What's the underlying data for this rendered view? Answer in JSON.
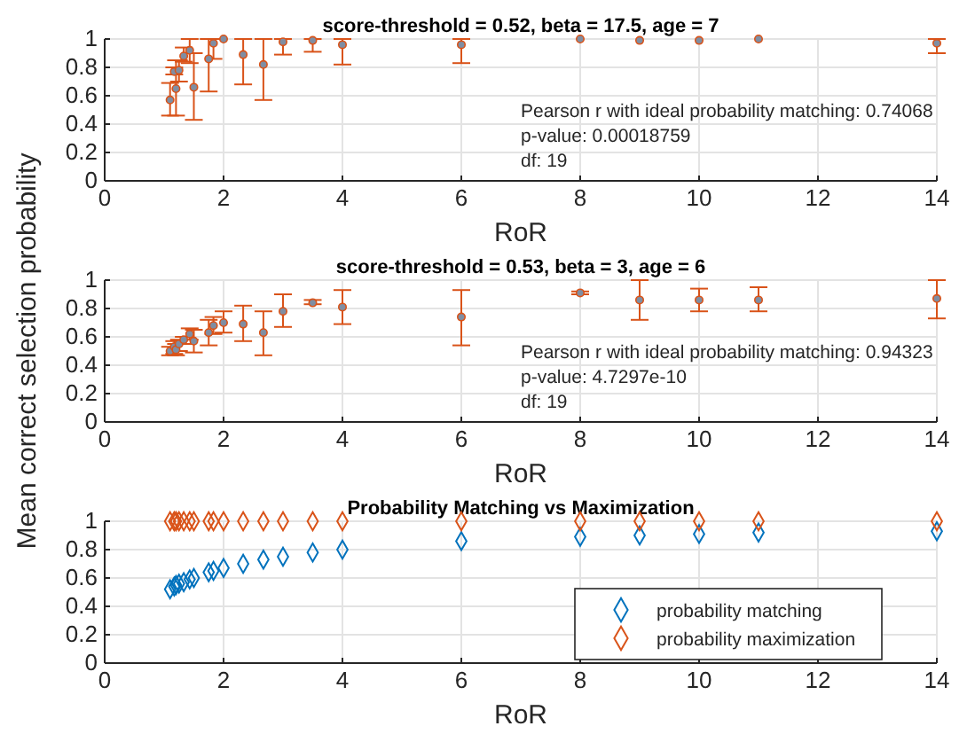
{
  "chart_data": [
    {
      "type": "scatter",
      "title": "score-threshold = 0.52, beta = 17.5, age = 7",
      "xlabel": "RoR",
      "x": [
        1.1,
        1.17,
        1.2,
        1.25,
        1.33,
        1.43,
        1.5,
        1.75,
        1.83,
        2,
        2.33,
        2.67,
        3,
        3.5,
        4,
        6,
        8,
        9,
        10,
        11,
        14
      ],
      "xlim": [
        0,
        14
      ],
      "xticks": [
        0,
        2,
        4,
        6,
        8,
        10,
        12,
        14
      ],
      "ylim": [
        0,
        1
      ],
      "yticks": [
        0,
        0.2,
        0.4,
        0.6,
        0.8,
        1
      ],
      "grid": true,
      "marker": "circle",
      "legend": false,
      "series": [
        {
          "color": "#d95319",
          "values": [
            0.57,
            0.77,
            0.65,
            0.78,
            0.88,
            0.92,
            0.66,
            0.86,
            0.97,
            1.0,
            0.89,
            0.82,
            0.98,
            0.99,
            0.96,
            0.96,
            1.0,
            0.99,
            0.99,
            1.0,
            0.97
          ],
          "errors": [
            [
              0.46,
              0.69
            ],
            [
              0.75,
              0.8
            ],
            [
              0.46,
              0.85
            ],
            [
              0.7,
              0.85
            ],
            [
              0.84,
              0.94
            ],
            [
              0.83,
              1.0
            ],
            [
              0.43,
              0.9
            ],
            [
              0.63,
              1.0
            ],
            [
              0.86,
              1.0
            ],
            null,
            [
              0.68,
              1.0
            ],
            [
              0.57,
              1.0
            ],
            [
              0.89,
              1.0
            ],
            [
              0.91,
              1.0
            ],
            [
              0.82,
              1.0
            ],
            [
              0.83,
              1.0
            ],
            null,
            null,
            null,
            null,
            [
              0.9,
              1.0
            ]
          ]
        }
      ],
      "annotations": [
        "Pearson r with ideal probability matching: 0.74068",
        "p-value: 0.00018759",
        "df: 19"
      ]
    },
    {
      "type": "scatter",
      "title": "score-threshold = 0.53, beta = 3, age = 6",
      "xlabel": "RoR",
      "ylabel": "Mean correct selection probability",
      "x": [
        1.1,
        1.17,
        1.2,
        1.25,
        1.33,
        1.43,
        1.5,
        1.75,
        1.83,
        2,
        2.33,
        2.67,
        3,
        3.5,
        4,
        6,
        8,
        9,
        10,
        11,
        14
      ],
      "xlim": [
        0,
        14
      ],
      "xticks": [
        0,
        2,
        4,
        6,
        8,
        10,
        12,
        14
      ],
      "ylim": [
        0,
        1
      ],
      "yticks": [
        0,
        0.2,
        0.4,
        0.6,
        0.8,
        1
      ],
      "grid": true,
      "marker": "circle",
      "legend": false,
      "series": [
        {
          "color": "#d95319",
          "values": [
            0.5,
            0.53,
            0.51,
            0.55,
            0.58,
            0.62,
            0.57,
            0.63,
            0.68,
            0.7,
            0.69,
            0.63,
            0.78,
            0.84,
            0.81,
            0.74,
            0.91,
            0.86,
            0.86,
            0.86,
            0.87
          ],
          "errors": [
            [
              0.47,
              0.53
            ],
            [
              0.48,
              0.57
            ],
            [
              0.47,
              0.55
            ],
            [
              0.5,
              0.58
            ],
            [
              0.55,
              0.6
            ],
            [
              0.58,
              0.66
            ],
            [
              0.49,
              0.65
            ],
            [
              0.54,
              0.72
            ],
            [
              0.62,
              0.74
            ],
            [
              0.63,
              0.78
            ],
            [
              0.57,
              0.82
            ],
            [
              0.47,
              0.78
            ],
            [
              0.67,
              0.9
            ],
            [
              0.83,
              0.86
            ],
            [
              0.69,
              0.93
            ],
            [
              0.54,
              0.93
            ],
            [
              0.9,
              0.92
            ],
            [
              0.72,
              1.0
            ],
            [
              0.78,
              0.94
            ],
            [
              0.78,
              0.95
            ],
            [
              0.73,
              1.0
            ]
          ]
        }
      ],
      "annotations": [
        "Pearson r with ideal probability matching: 0.94323",
        "p-value: 4.7297e-10",
        "df: 19"
      ]
    },
    {
      "type": "scatter",
      "title": "Probability Matching vs Maximization",
      "xlabel": "RoR",
      "x": [
        1.1,
        1.17,
        1.2,
        1.25,
        1.33,
        1.43,
        1.5,
        1.75,
        1.83,
        2,
        2.33,
        2.67,
        3,
        3.5,
        4,
        6,
        8,
        9,
        10,
        11,
        14
      ],
      "xlim": [
        0,
        14
      ],
      "xticks": [
        0,
        2,
        4,
        6,
        8,
        10,
        12,
        14
      ],
      "ylim": [
        0,
        1
      ],
      "yticks": [
        0,
        0.2,
        0.4,
        0.6,
        0.8,
        1
      ],
      "grid": true,
      "marker": "diamond",
      "legend": "bottom right",
      "series": [
        {
          "name": "probability matching",
          "color": "#0072bd",
          "values": [
            0.52,
            0.54,
            0.55,
            0.56,
            0.57,
            0.59,
            0.6,
            0.64,
            0.65,
            0.67,
            0.7,
            0.73,
            0.75,
            0.78,
            0.8,
            0.86,
            0.89,
            0.9,
            0.91,
            0.92,
            0.93
          ]
        },
        {
          "name": "probability maximization",
          "color": "#d95319",
          "values": [
            1,
            1,
            1,
            1,
            1,
            1,
            1,
            1,
            1,
            1,
            1,
            1,
            1,
            1,
            1,
            1,
            1,
            1,
            1,
            1,
            1
          ]
        }
      ]
    }
  ]
}
